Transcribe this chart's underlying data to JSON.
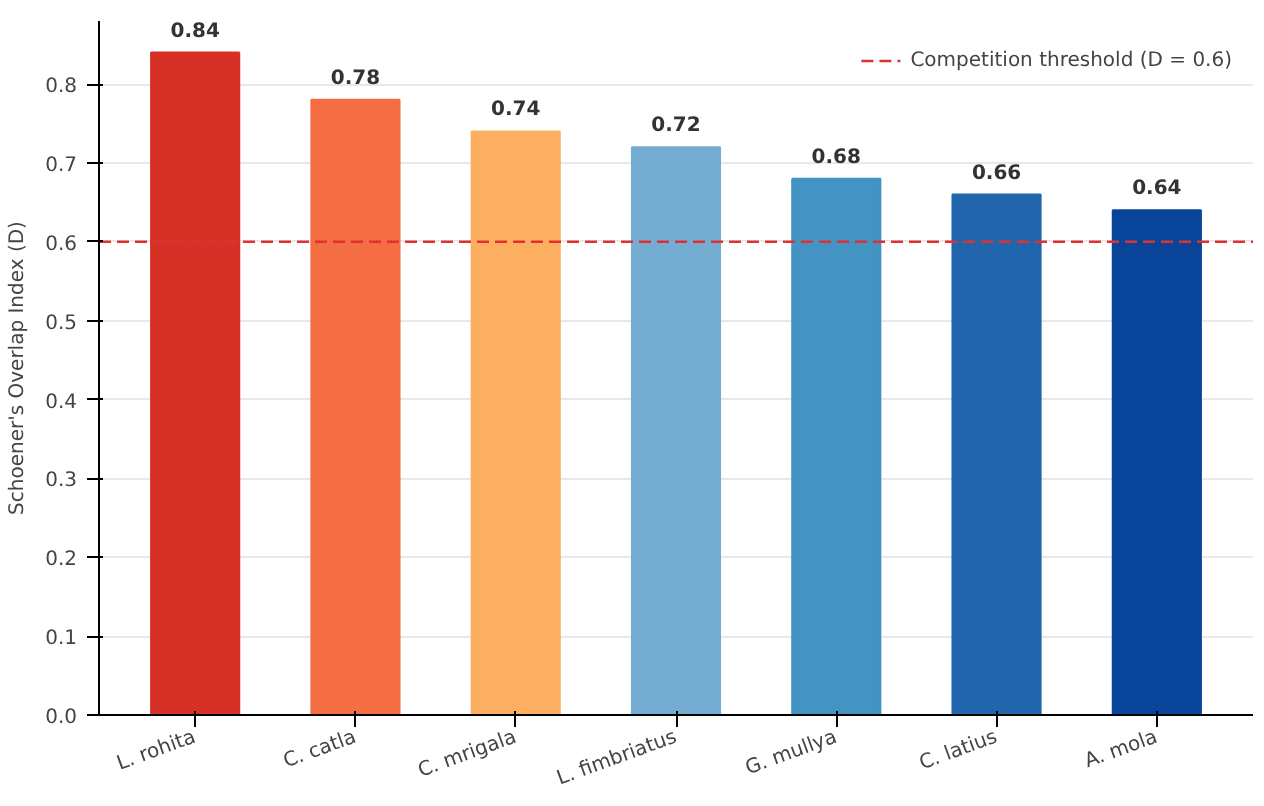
{
  "chart_data": {
    "type": "bar",
    "ylabel": "Schoener's Overlap Index (D)",
    "categories": [
      "L. rohita",
      "C. catla",
      "C. mrigala",
      "L. fimbriatus",
      "G. mullya",
      "C. latius",
      "A. mola"
    ],
    "values": [
      0.84,
      0.78,
      0.74,
      0.72,
      0.68,
      0.66,
      0.64
    ],
    "colors": [
      "#d73027",
      "#f46d43",
      "#fdae61",
      "#74add1",
      "#4393c3",
      "#2166ac",
      "#08459a"
    ],
    "ylim": [
      0,
      0.88
    ],
    "yticks": [
      {
        "value": 0,
        "label": "0.0"
      },
      0.1,
      0.2,
      0.3,
      0.4,
      0.5,
      0.6,
      0.7,
      0.8
    ],
    "ref_lines": [
      {
        "axis": "y",
        "value": 0.6,
        "label": "Competition threshold (D = 0.6)",
        "color": "#e03030",
        "line_style": "dashed"
      }
    ],
    "data_labels": true,
    "grid": "y",
    "legend": "top right"
  }
}
